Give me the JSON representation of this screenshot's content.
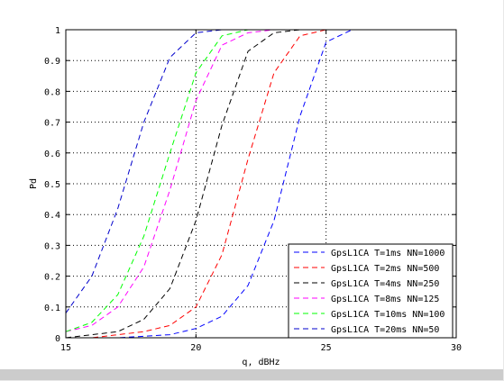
{
  "chart_data": {
    "type": "line",
    "title": "",
    "xlabel": "q, dBHz",
    "ylabel": "Pd",
    "xlim": [
      15,
      30
    ],
    "ylim": [
      0,
      1
    ],
    "xticks": [
      15,
      20,
      25,
      30
    ],
    "yticks": [
      0,
      0.1,
      0.2,
      0.3,
      0.4,
      0.5,
      0.6,
      0.7,
      0.8,
      0.9,
      1
    ],
    "xtick_labels": [
      "15",
      "20",
      "25",
      "30"
    ],
    "ytick_labels": [
      "0",
      "0.1",
      "0.2",
      "0.3",
      "0.4",
      "0.5",
      "0.6",
      "0.7",
      "0.8",
      "0.9",
      "1"
    ],
    "grid": true,
    "legend_position": "bottom-right",
    "x": [
      15,
      16,
      17,
      18,
      19,
      20,
      21,
      22,
      23,
      24,
      25,
      26,
      27,
      28,
      29,
      30
    ],
    "series": [
      {
        "name": "GpsL1CA T=1ms NN=1000",
        "color": "#0000ff",
        "values": [
          0,
          0,
          0,
          0.005,
          0.01,
          0.03,
          0.07,
          0.17,
          0.38,
          0.72,
          0.96,
          1,
          1,
          1,
          1,
          1
        ]
      },
      {
        "name": "GpsL1CA T=2ms NN=500",
        "color": "#ff0000",
        "values": [
          0,
          0,
          0.01,
          0.02,
          0.04,
          0.1,
          0.27,
          0.58,
          0.86,
          0.98,
          1,
          1,
          1,
          1,
          1,
          1
        ]
      },
      {
        "name": "GpsL1CA T=4ms NN=250",
        "color": "#000000",
        "values": [
          0,
          0.01,
          0.02,
          0.06,
          0.16,
          0.38,
          0.69,
          0.93,
          0.99,
          1,
          1,
          1,
          1,
          1,
          1,
          1
        ]
      },
      {
        "name": "GpsL1CA T=8ms NN=125",
        "color": "#ff00ff",
        "values": [
          0.02,
          0.04,
          0.1,
          0.23,
          0.48,
          0.77,
          0.95,
          0.99,
          1,
          1,
          1,
          1,
          1,
          1,
          1,
          1
        ]
      },
      {
        "name": "GpsL1CA T=10ms NN=100",
        "color": "#00ff00",
        "values": [
          0.02,
          0.05,
          0.14,
          0.33,
          0.6,
          0.86,
          0.98,
          1,
          1,
          1,
          1,
          1,
          1,
          1,
          1,
          1
        ]
      },
      {
        "name": "GpsL1CA T=20ms NN=50",
        "color": "#0000cc",
        "values": [
          0.08,
          0.2,
          0.42,
          0.7,
          0.91,
          0.99,
          1,
          1,
          1,
          1,
          1,
          1,
          1,
          1,
          1,
          1
        ]
      }
    ]
  }
}
